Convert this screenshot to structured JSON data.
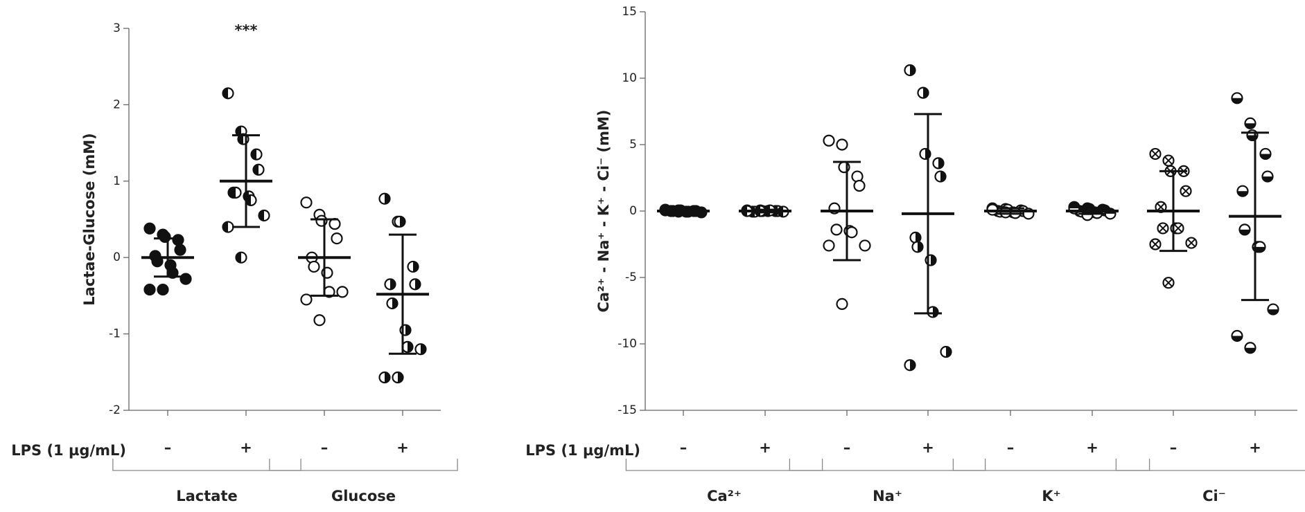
{
  "chart_data": [
    {
      "type": "dot",
      "y_label": "Lactae-Glucose (mM)",
      "x_label": "LPS (1 µg/mL)",
      "ylim": [
        -2,
        3
      ],
      "yticks": [
        -2,
        -1,
        0,
        1,
        2,
        3
      ],
      "categories": [
        "–",
        "+",
        "–",
        "+"
      ],
      "groups": [
        "Lactate",
        "Glucose"
      ],
      "markers": [
        "filled",
        "half-left",
        "open",
        "half-right"
      ],
      "significance": [
        null,
        "***",
        null,
        null
      ],
      "points": [
        [
          0.38,
          0.3,
          0.27,
          0.23,
          0.1,
          0.02,
          -0.05,
          -0.1,
          -0.2,
          -0.28,
          -0.42,
          -0.42
        ],
        [
          2.15,
          1.65,
          1.55,
          1.35,
          1.15,
          0.85,
          0.85,
          0.8,
          0.75,
          0.55,
          0.4,
          0.0
        ],
        [
          0.72,
          0.56,
          0.48,
          0.44,
          0.25,
          0.0,
          -0.12,
          -0.2,
          -0.45,
          -0.45,
          -0.55,
          -0.82
        ],
        [
          0.77,
          0.47,
          0.47,
          -0.12,
          -0.35,
          -0.35,
          -0.6,
          -0.95,
          -1.17,
          -1.2,
          -1.57,
          -1.57
        ]
      ],
      "means": [
        0.0,
        1.0,
        0.0,
        -0.48
      ],
      "sds": [
        0.25,
        0.6,
        0.5,
        0.78
      ]
    },
    {
      "type": "dot",
      "y_label": "Ca²⁺ - Na⁺ - K⁺ - Ci⁻ (mM)",
      "x_label": "LPS (1 µg/mL)",
      "ylim": [
        -15,
        15
      ],
      "yticks": [
        -15,
        -10,
        -5,
        0,
        5,
        10,
        15
      ],
      "categories": [
        "–",
        "+",
        "–",
        "+",
        "–",
        "+",
        "–",
        "+"
      ],
      "groups": [
        "Ca²⁺",
        "Na⁺",
        "K⁺",
        "Ci⁻"
      ],
      "markers": [
        "filled",
        "half-left",
        "open",
        "half-right",
        "open",
        "half-top",
        "crossed",
        "half-bottom"
      ],
      "significance": [
        null,
        null,
        null,
        null,
        null,
        null,
        null,
        null
      ],
      "points": [
        [
          0.1,
          0.05,
          0.05,
          0.0,
          0.0,
          0.0,
          0.0,
          -0.05,
          -0.05,
          -0.1,
          0.05,
          -0.05
        ],
        [
          0.05,
          0.05,
          0.0,
          0.0,
          0.0,
          -0.05,
          -0.05,
          0.0,
          0.05,
          -0.05,
          0.0,
          0.0
        ],
        [
          5.3,
          5.0,
          3.3,
          2.6,
          1.9,
          0.2,
          -1.4,
          -1.5,
          -1.6,
          -2.6,
          -2.6,
          -7.0
        ],
        [
          10.6,
          8.9,
          4.3,
          3.6,
          2.6,
          -2.0,
          -2.7,
          -3.7,
          -7.6,
          -10.6,
          -11.6
        ],
        [
          0.2,
          0.15,
          0.1,
          0.05,
          0.0,
          0.0,
          -0.05,
          -0.1,
          -0.15,
          -0.2,
          0.1,
          -0.1
        ],
        [
          0.3,
          0.2,
          0.15,
          0.1,
          0.05,
          0.0,
          -0.05,
          -0.1,
          -0.15,
          -0.2,
          0.2,
          -0.3
        ],
        [
          4.3,
          3.8,
          3.0,
          3.0,
          1.5,
          0.3,
          -1.3,
          -1.3,
          -1.3,
          -2.4,
          -2.5,
          -5.4
        ],
        [
          8.5,
          6.6,
          5.7,
          4.3,
          2.6,
          1.5,
          -1.4,
          -2.7,
          -2.7,
          -7.4,
          -9.4,
          -10.3
        ]
      ],
      "means": [
        0.0,
        0.0,
        0.0,
        -0.2,
        0.0,
        0.0,
        0.0,
        -0.4
      ],
      "sds": [
        0.1,
        0.1,
        3.7,
        7.5,
        0.2,
        0.2,
        3.0,
        6.3
      ]
    }
  ]
}
